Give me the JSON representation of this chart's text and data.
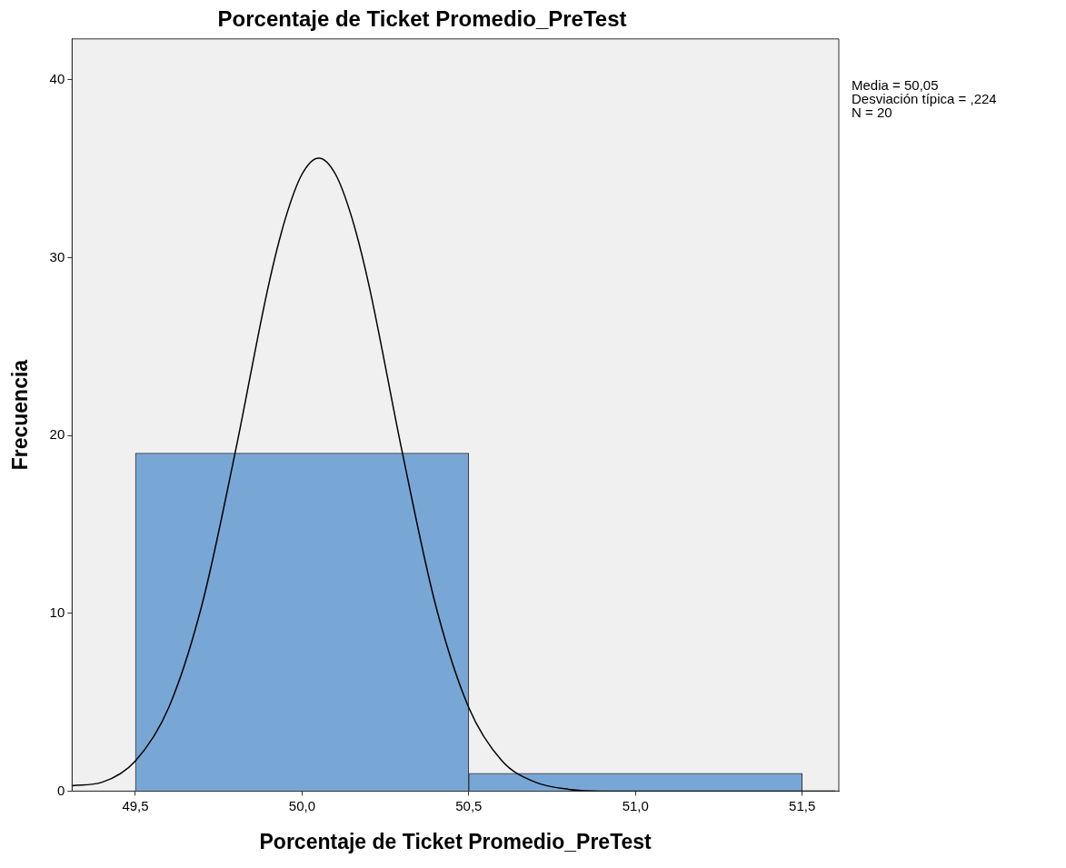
{
  "chart_data": {
    "type": "histogram",
    "title": "Porcentaje de Ticket Promedio_PreTest",
    "xlabel": "Porcentaje de Ticket Promedio_PreTest",
    "ylabel": "Frecuencia",
    "bins": [
      49.5,
      50.5,
      51.5
    ],
    "values": [
      19,
      1
    ],
    "color": "#79a7d5",
    "series": [
      {
        "type": "line",
        "color": "#000000",
        "x": [
          49.31,
          49.4,
          49.5,
          49.6,
          49.7,
          49.8,
          49.9,
          49.95,
          50.0,
          50.05,
          50.1,
          50.15,
          50.2,
          50.3,
          50.4,
          50.5,
          50.6,
          50.7,
          50.8,
          50.9,
          51.0,
          51.6
        ],
        "values": [
          0.3,
          0.5,
          1.7,
          4.7,
          10.5,
          19.1,
          28.5,
          32.2,
          34.7,
          35.6,
          34.7,
          32.2,
          28.5,
          19.1,
          10.5,
          4.7,
          1.7,
          0.5,
          0.1,
          0,
          0,
          0
        ]
      }
    ],
    "xlim": [
      49.31,
      51.61
    ],
    "ylim": [
      0,
      42.3
    ],
    "xticks": [
      {
        "value": 49.5,
        "label": "49,5"
      },
      {
        "value": 50.0,
        "label": "50,0"
      },
      {
        "value": 50.5,
        "label": "50,5"
      },
      {
        "value": 51.0,
        "label": "51,0"
      },
      {
        "value": 51.5,
        "label": "51,5"
      }
    ],
    "yticks": [
      0,
      10,
      20,
      30,
      40
    ],
    "grid": false,
    "legend": false,
    "annotations": [
      "Media = 50,05",
      "Desviación típica = ,224",
      "N = 20"
    ]
  }
}
